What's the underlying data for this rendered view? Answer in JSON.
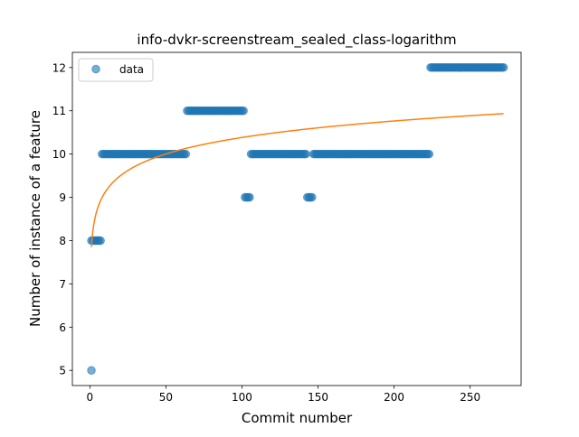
{
  "chart_data": {
    "type": "scatter",
    "title": "info-dvkr-screenstream_sealed_class-logarithm",
    "xlabel": "Commit number",
    "ylabel": "Number of instance of a feature",
    "xlim": [
      -11.5,
      283.5
    ],
    "ylim": [
      4.65,
      12.35
    ],
    "xticks": [
      0,
      50,
      100,
      150,
      200,
      250
    ],
    "yticks": [
      5,
      6,
      7,
      8,
      9,
      10,
      11,
      12
    ],
    "grid": false,
    "legend": {
      "position": "upper-left",
      "entries": [
        "data"
      ]
    },
    "colors": {
      "data": "#1f77b4",
      "fit": "#ff7f0e"
    },
    "series": [
      {
        "name": "data",
        "kind": "scatter",
        "segments": [
          {
            "x_start": 1,
            "x_end": 1,
            "y": 5
          },
          {
            "x_start": 1,
            "x_end": 7,
            "y": 8
          },
          {
            "x_start": 8,
            "x_end": 63,
            "y": 10
          },
          {
            "x_start": 64,
            "x_end": 101,
            "y": 11
          },
          {
            "x_start": 102,
            "x_end": 105,
            "y": 9
          },
          {
            "x_start": 106,
            "x_end": 142,
            "y": 10
          },
          {
            "x_start": 143,
            "x_end": 146,
            "y": 9
          },
          {
            "x_start": 147,
            "x_end": 223,
            "y": 10
          },
          {
            "x_start": 224,
            "x_end": 272,
            "y": 12
          }
        ]
      },
      {
        "kind": "line",
        "model": "a + b*ln(x)",
        "a": 7.85,
        "b": 0.55,
        "x_range": [
          1,
          272
        ]
      }
    ]
  }
}
